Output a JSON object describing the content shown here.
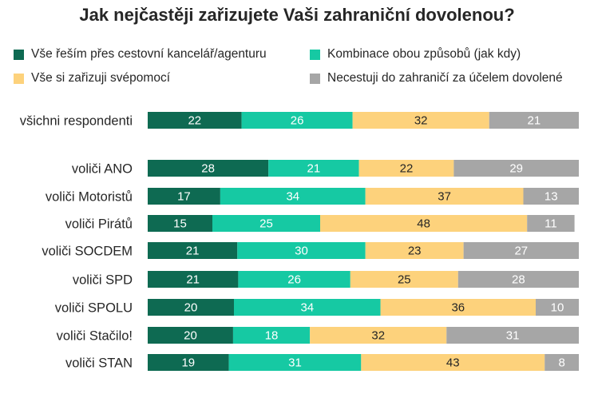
{
  "chart_data": {
    "type": "bar",
    "orientation": "horizontal",
    "stacked": true,
    "title": "Jak nejčastěji zařizujete Vaši zahraniční dovolenou?",
    "legend_position": "top",
    "grid": false,
    "xlim": [
      0,
      100
    ],
    "categories": [
      "všichni respondenti",
      "voliči ANO",
      "voliči Motoristů",
      "voliči Pirátů",
      "voliči SOCDEM",
      "voliči SPD",
      "voliči SPOLU",
      "voliči Stačilo!",
      "voliči STAN"
    ],
    "series": [
      {
        "name": "Vše řeším přes cestovní kancelář/agenturu",
        "color": "#0e6a52",
        "label_color": "#ffffff",
        "values": [
          22,
          28,
          17,
          15,
          21,
          21,
          20,
          20,
          19
        ]
      },
      {
        "name": "Kombinace obou způsobů (jak kdy)",
        "color": "#16c9a3",
        "label_color": "#ffffff",
        "values": [
          26,
          21,
          34,
          25,
          30,
          26,
          34,
          18,
          31
        ]
      },
      {
        "name": "Vše si zařizuji svépomocí",
        "color": "#fdd27c",
        "label_color": "#262626",
        "values": [
          32,
          22,
          37,
          48,
          23,
          25,
          36,
          32,
          43
        ]
      },
      {
        "name": "Necestuji do zahraničí za účelem dovolené",
        "color": "#a6a6a6",
        "label_color": "#ffffff",
        "values": [
          21,
          29,
          13,
          11,
          27,
          28,
          10,
          31,
          8
        ]
      }
    ]
  }
}
